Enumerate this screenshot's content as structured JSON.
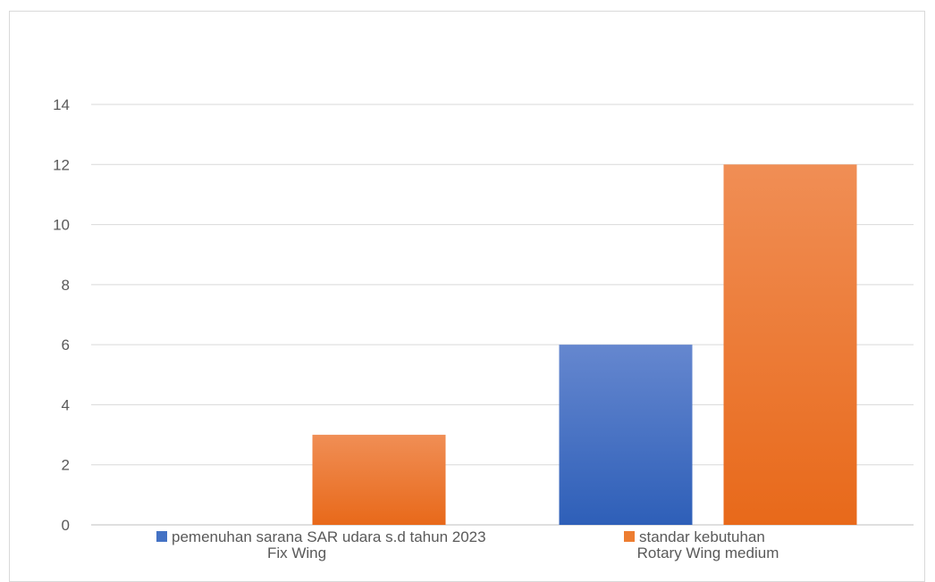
{
  "chart_data": {
    "type": "bar",
    "title": "",
    "xlabel": "",
    "ylabel": "",
    "categories": [
      "Fix Wing",
      "Rotary Wing medium"
    ],
    "series": [
      {
        "name": "pemenuhan sarana SAR udara s.d  tahun 2023",
        "values": [
          0,
          6
        ],
        "color": "#4472c4"
      },
      {
        "name": "standar kebutuhan",
        "values": [
          3,
          12
        ],
        "color": "#ed7d31"
      }
    ],
    "ylim": [
      0,
      14
    ],
    "yticks": [
      0,
      2,
      4,
      6,
      8,
      10,
      12,
      14
    ],
    "grid": true,
    "legend_position": "bottom"
  }
}
